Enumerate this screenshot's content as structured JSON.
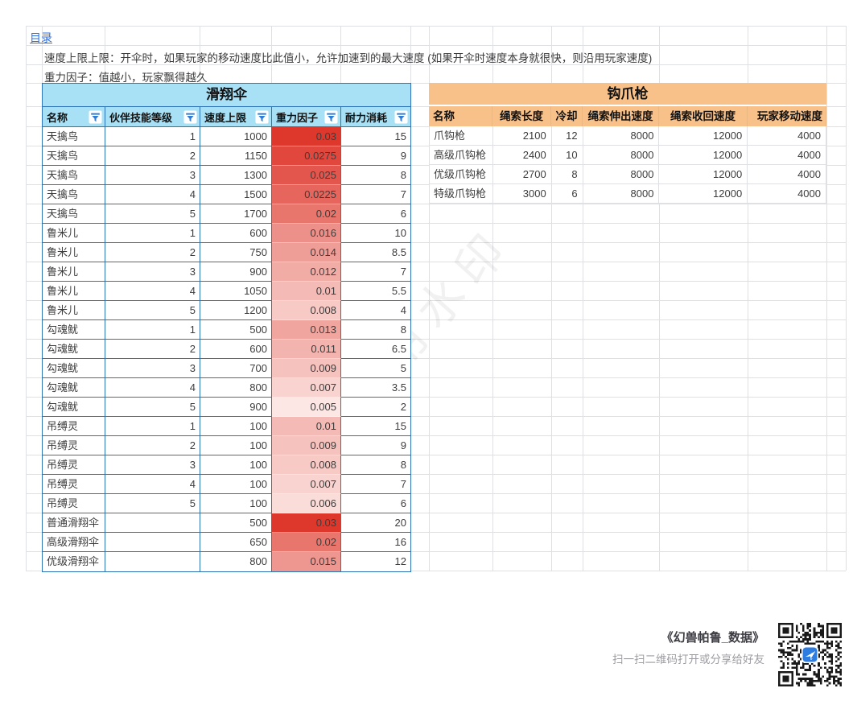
{
  "page": {
    "link_label": "目录"
  },
  "notes": {
    "speed": "速度上限上限：开伞时，如果玩家的移动速度比此值小，允许加速到的最大速度 (如果开伞时速度本身就很快，则沿用玩家速度)",
    "gravity": "重力因子：值越小，玩家飘得越久"
  },
  "glider": {
    "title": "滑翔伞",
    "headers": [
      "名称",
      "伙伴技能等级",
      "速度上限",
      "重力因子",
      "耐力消耗"
    ],
    "rows": [
      {
        "name": "天擒鸟",
        "level": "1",
        "speed": "1000",
        "gravity": "0.03",
        "stamina": "15"
      },
      {
        "name": "天擒鸟",
        "level": "2",
        "speed": "1150",
        "gravity": "0.0275",
        "stamina": "9"
      },
      {
        "name": "天擒鸟",
        "level": "3",
        "speed": "1300",
        "gravity": "0.025",
        "stamina": "8"
      },
      {
        "name": "天擒鸟",
        "level": "4",
        "speed": "1500",
        "gravity": "0.0225",
        "stamina": "7"
      },
      {
        "name": "天擒鸟",
        "level": "5",
        "speed": "1700",
        "gravity": "0.02",
        "stamina": "6"
      },
      {
        "name": "鲁米儿",
        "level": "1",
        "speed": "600",
        "gravity": "0.016",
        "stamina": "10"
      },
      {
        "name": "鲁米儿",
        "level": "2",
        "speed": "750",
        "gravity": "0.014",
        "stamina": "8.5"
      },
      {
        "name": "鲁米儿",
        "level": "3",
        "speed": "900",
        "gravity": "0.012",
        "stamina": "7"
      },
      {
        "name": "鲁米儿",
        "level": "4",
        "speed": "1050",
        "gravity": "0.01",
        "stamina": "5.5"
      },
      {
        "name": "鲁米儿",
        "level": "5",
        "speed": "1200",
        "gravity": "0.008",
        "stamina": "4"
      },
      {
        "name": "勾魂鱿",
        "level": "1",
        "speed": "500",
        "gravity": "0.013",
        "stamina": "8"
      },
      {
        "name": "勾魂鱿",
        "level": "2",
        "speed": "600",
        "gravity": "0.011",
        "stamina": "6.5"
      },
      {
        "name": "勾魂鱿",
        "level": "3",
        "speed": "700",
        "gravity": "0.009",
        "stamina": "5"
      },
      {
        "name": "勾魂鱿",
        "level": "4",
        "speed": "800",
        "gravity": "0.007",
        "stamina": "3.5"
      },
      {
        "name": "勾魂鱿",
        "level": "5",
        "speed": "900",
        "gravity": "0.005",
        "stamina": "2"
      },
      {
        "name": "吊缚灵",
        "level": "1",
        "speed": "100",
        "gravity": "0.01",
        "stamina": "15"
      },
      {
        "name": "吊缚灵",
        "level": "2",
        "speed": "100",
        "gravity": "0.009",
        "stamina": "9"
      },
      {
        "name": "吊缚灵",
        "level": "3",
        "speed": "100",
        "gravity": "0.008",
        "stamina": "8"
      },
      {
        "name": "吊缚灵",
        "level": "4",
        "speed": "100",
        "gravity": "0.007",
        "stamina": "7"
      },
      {
        "name": "吊缚灵",
        "level": "5",
        "speed": "100",
        "gravity": "0.006",
        "stamina": "6"
      },
      {
        "name": "普通滑翔伞",
        "level": "",
        "speed": "500",
        "gravity": "0.03",
        "stamina": "20"
      },
      {
        "name": "高级滑翔伞",
        "level": "",
        "speed": "650",
        "gravity": "0.02",
        "stamina": "16"
      },
      {
        "name": "优级滑翔伞",
        "level": "",
        "speed": "800",
        "gravity": "0.015",
        "stamina": "12"
      }
    ],
    "gravity_scale": {
      "min": 0.005,
      "max": 0.03
    }
  },
  "grapple": {
    "title": "钩爪枪",
    "headers": [
      "名称",
      "绳索长度",
      "冷却",
      "绳索伸出速度",
      "绳索收回速度",
      "玩家移动速度"
    ],
    "rows": [
      {
        "name": "爪钩枪",
        "length": "2100",
        "cooldown": "12",
        "extend": "8000",
        "retract": "12000",
        "move": "4000"
      },
      {
        "name": "高级爪钩枪",
        "length": "2400",
        "cooldown": "10",
        "extend": "8000",
        "retract": "12000",
        "move": "4000"
      },
      {
        "name": "优级爪钩枪",
        "length": "2700",
        "cooldown": "8",
        "extend": "8000",
        "retract": "12000",
        "move": "4000"
      },
      {
        "name": "特级爪钩枪",
        "length": "3000",
        "cooldown": "6",
        "extend": "8000",
        "retract": "12000",
        "move": "4000"
      }
    ]
  },
  "watermark": "试用水印",
  "footer": {
    "title": "《幻兽帕鲁_数据》",
    "hint": "扫一扫二维码打开或分享给好友"
  },
  "colors": {
    "header_blue": "#A8E1F5",
    "border_blue": "#2E75B6",
    "header_orange": "#F8C189",
    "gravity_low": "#FCE7E4",
    "gravity_high": "#DE382D",
    "filter_blue": "#2D7DD6",
    "link": "#2F6FE4",
    "grid": "#DEE0E3",
    "qr_logo_blue": "#2D7DE1"
  }
}
